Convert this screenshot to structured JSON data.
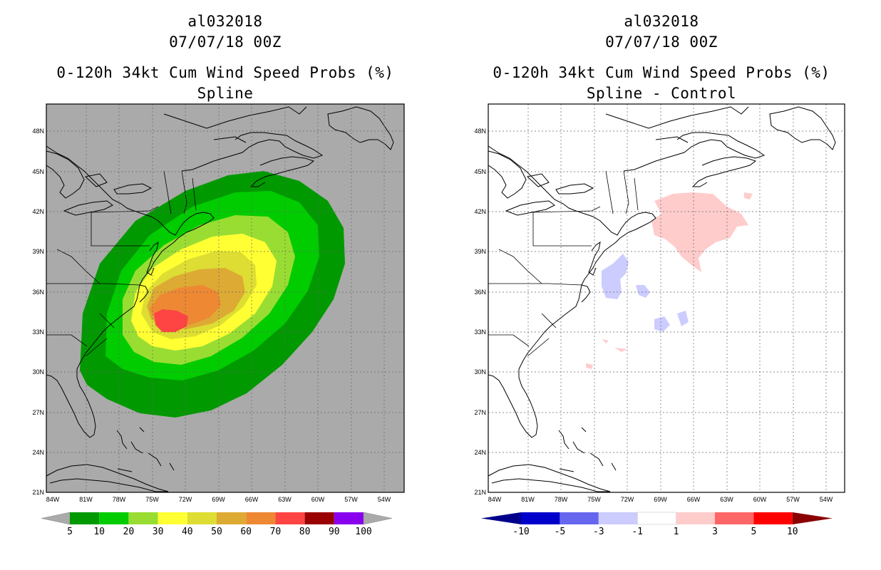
{
  "left_panel": {
    "title_lines": [
      "al032018",
      "07/07/18 00Z",
      "0-120h 34kt Cum Wind Speed Probs (%)",
      "Spline"
    ],
    "background_color": "#aaaaaa",
    "colorbar": {
      "labels": [
        "5",
        "10",
        "20",
        "30",
        "40",
        "50",
        "60",
        "70",
        "80",
        "90",
        "100"
      ],
      "colors": [
        "#009900",
        "#00cc00",
        "#99dd33",
        "#ffff33",
        "#dddd33",
        "#ddaa33",
        "#ee8833",
        "#ff4444",
        "#990000",
        "#8800ee"
      ],
      "end_color": "#aaaaaa"
    }
  },
  "right_panel": {
    "title_lines": [
      "al032018",
      "07/07/18 00Z",
      "0-120h 34kt Cum Wind Speed Probs (%)",
      "Spline - Control"
    ],
    "background_color": "#ffffff",
    "colorbar": {
      "labels": [
        "-10",
        "-5",
        "-3",
        "-1",
        "1",
        "3",
        "5",
        "10"
      ],
      "colors": [
        "#0000cc",
        "#6666ee",
        "#ccccff",
        "#ffffff",
        "#ffcccc",
        "#ff6666",
        "#ff0000"
      ],
      "low_end_color": "#00008b",
      "high_end_color": "#8b0000"
    }
  },
  "axes": {
    "lat_labels": [
      "48N",
      "45N",
      "42N",
      "39N",
      "36N",
      "33N",
      "30N",
      "27N",
      "24N",
      "21N"
    ],
    "lon_labels": [
      "84W",
      "81W",
      "78W",
      "75W",
      "72W",
      "69W",
      "66W",
      "63W",
      "60W",
      "57W",
      "54W"
    ]
  }
}
